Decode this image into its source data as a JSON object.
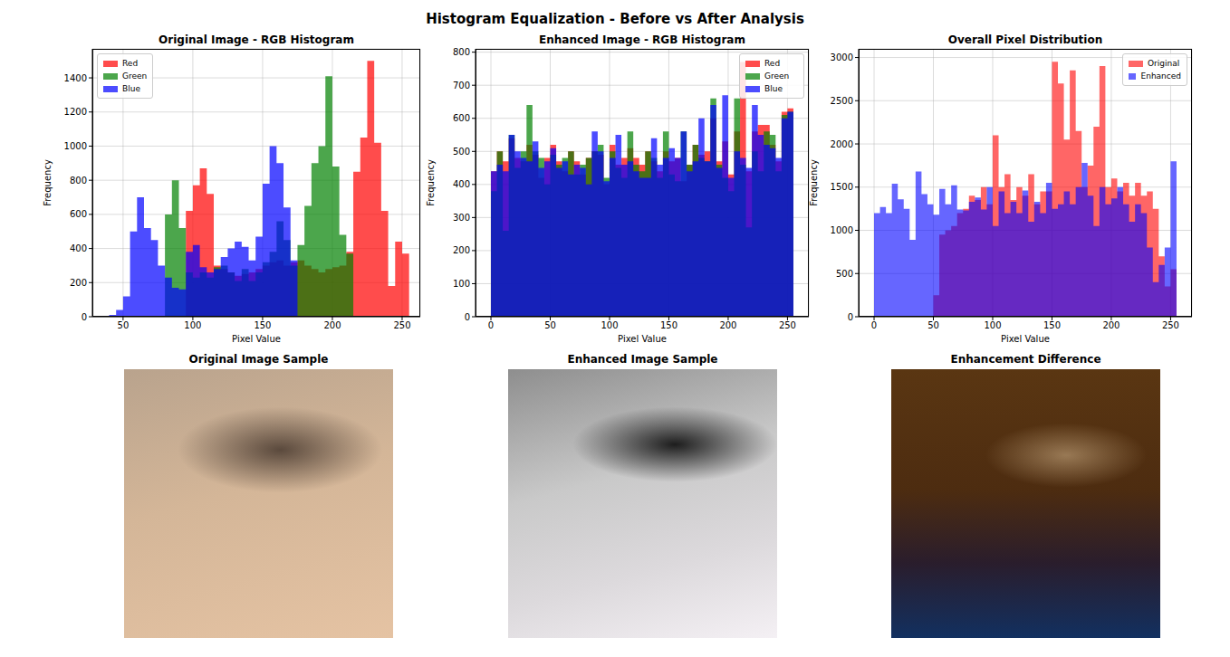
{
  "title": "Histogram Equalization - Before vs After Analysis",
  "chart_data": [
    {
      "type": "histogram",
      "title": "Original Image - RGB Histogram",
      "x_label": "Pixel Value",
      "y_label": "Frequency",
      "bins": [
        35,
        40,
        45,
        50,
        55,
        60,
        65,
        70,
        75,
        80,
        85,
        90,
        95,
        100,
        105,
        110,
        115,
        120,
        125,
        130,
        135,
        140,
        145,
        150,
        155,
        160,
        165,
        170,
        175,
        180,
        185,
        190,
        195,
        200,
        205,
        210,
        215,
        220,
        225,
        230,
        235,
        240,
        245,
        250,
        255
      ],
      "series": [
        {
          "name": "Red",
          "color": "#ff0000",
          "values": [
            0,
            0,
            0,
            0,
            0,
            0,
            0,
            0,
            0,
            0,
            0,
            0,
            620,
            770,
            870,
            720,
            300,
            280,
            260,
            240,
            250,
            260,
            280,
            300,
            320,
            330,
            300,
            320,
            330,
            300,
            280,
            260,
            280,
            290,
            300,
            380,
            850,
            1050,
            1500,
            1020,
            620,
            180,
            440,
            370
          ]
        },
        {
          "name": "Green",
          "color": "#008000",
          "values": [
            0,
            0,
            0,
            0,
            0,
            0,
            0,
            0,
            0,
            600,
            800,
            520,
            260,
            230,
            260,
            230,
            290,
            300,
            260,
            210,
            280,
            210,
            260,
            320,
            380,
            560,
            450,
            300,
            420,
            650,
            900,
            1000,
            1410,
            880,
            480,
            370,
            0,
            0,
            0,
            0,
            0,
            0,
            0,
            0
          ]
        },
        {
          "name": "Blue",
          "color": "#0000ff",
          "values": [
            0,
            10,
            40,
            120,
            500,
            700,
            520,
            450,
            300,
            230,
            170,
            160,
            380,
            420,
            290,
            260,
            280,
            350,
            400,
            440,
            410,
            330,
            470,
            780,
            1000,
            900,
            640,
            330,
            0,
            0,
            0,
            0,
            0,
            0,
            0,
            0,
            0,
            0,
            0,
            0,
            0,
            0,
            0,
            0
          ]
        }
      ],
      "xlim": [
        28,
        263
      ],
      "xticks": [
        50,
        100,
        150,
        200,
        250
      ],
      "ylim": [
        0,
        1570
      ],
      "yticks": [
        0,
        200,
        400,
        600,
        800,
        1000,
        1200,
        1400
      ],
      "grid": true,
      "legend": "upper left"
    },
    {
      "type": "histogram",
      "title": "Enhanced Image - RGB Histogram",
      "x_label": "Pixel Value",
      "y_label": "Frequency",
      "bins": [
        0,
        5,
        10,
        15,
        20,
        25,
        30,
        35,
        40,
        45,
        50,
        55,
        60,
        65,
        70,
        75,
        80,
        85,
        90,
        95,
        100,
        105,
        110,
        115,
        120,
        125,
        130,
        135,
        140,
        145,
        150,
        155,
        160,
        165,
        170,
        175,
        180,
        185,
        190,
        195,
        200,
        205,
        210,
        215,
        220,
        225,
        230,
        235,
        240,
        245,
        250,
        255
      ],
      "series": [
        {
          "name": "Red",
          "color": "#ff0000",
          "values": [
            440,
            500,
            470,
            540,
            480,
            470,
            520,
            490,
            420,
            480,
            520,
            470,
            440,
            500,
            470,
            430,
            480,
            500,
            490,
            400,
            520,
            460,
            480,
            510,
            480,
            460,
            500,
            470,
            440,
            500,
            470,
            480,
            410,
            460,
            520,
            490,
            500,
            600,
            470,
            530,
            430,
            560,
            770,
            440,
            560,
            580,
            580,
            520,
            470,
            620,
            630
          ]
        },
        {
          "name": "Green",
          "color": "#008000",
          "values": [
            380,
            500,
            260,
            550,
            450,
            500,
            640,
            500,
            480,
            400,
            490,
            460,
            480,
            500,
            430,
            460,
            480,
            500,
            520,
            420,
            500,
            450,
            420,
            560,
            460,
            440,
            500,
            480,
            420,
            560,
            430,
            410,
            560,
            460,
            520,
            480,
            470,
            660,
            460,
            420,
            380,
            660,
            460,
            270,
            500,
            440,
            560,
            550,
            440,
            610,
            620
          ]
        },
        {
          "name": "Blue",
          "color": "#0000ff",
          "values": [
            440,
            460,
            440,
            550,
            500,
            480,
            470,
            530,
            450,
            470,
            510,
            450,
            470,
            430,
            460,
            450,
            400,
            560,
            500,
            410,
            480,
            550,
            460,
            470,
            440,
            420,
            420,
            540,
            460,
            480,
            510,
            480,
            560,
            440,
            470,
            600,
            470,
            640,
            450,
            670,
            420,
            500,
            480,
            450,
            640,
            550,
            520,
            510,
            480,
            600,
            620
          ]
        }
      ],
      "xlim": [
        -13,
        268
      ],
      "xticks": [
        0,
        50,
        100,
        150,
        200,
        250
      ],
      "ylim": [
        0,
        810
      ],
      "yticks": [
        0,
        100,
        200,
        300,
        400,
        500,
        600,
        700,
        800
      ],
      "grid": true,
      "legend": "upper right"
    },
    {
      "type": "histogram",
      "title": "Overall Pixel Distribution",
      "x_label": "Pixel Value",
      "y_label": "Frequency",
      "bins": [
        0,
        5,
        10,
        15,
        20,
        25,
        30,
        35,
        40,
        45,
        50,
        55,
        60,
        65,
        70,
        75,
        80,
        85,
        90,
        95,
        100,
        105,
        110,
        115,
        120,
        125,
        130,
        135,
        140,
        145,
        150,
        155,
        160,
        165,
        170,
        175,
        180,
        185,
        190,
        195,
        200,
        205,
        210,
        215,
        220,
        225,
        230,
        235,
        240,
        245,
        250,
        255
      ],
      "series": [
        {
          "name": "Original",
          "color": "#ff0000",
          "values": [
            0,
            0,
            0,
            0,
            0,
            0,
            0,
            0,
            0,
            0,
            250,
            950,
            1000,
            1050,
            1200,
            1250,
            1400,
            1350,
            1500,
            1300,
            2100,
            1500,
            1650,
            1350,
            1500,
            1400,
            1650,
            1300,
            1450,
            1450,
            2950,
            2700,
            2050,
            2850,
            2150,
            1500,
            1750,
            2200,
            2900,
            1500,
            1600,
            1450,
            1550,
            1400,
            1550,
            1400,
            1450,
            1250,
            700,
            350,
            550
          ]
        },
        {
          "name": "Enhanced",
          "color": "#0000ff",
          "values": [
            1200,
            1270,
            1200,
            1540,
            1360,
            1250,
            890,
            1680,
            1420,
            1300,
            1180,
            1480,
            1300,
            1520,
            1240,
            1230,
            1330,
            1380,
            1240,
            1500,
            1050,
            1450,
            1200,
            1330,
            1200,
            1460,
            1100,
            1330,
            1200,
            1550,
            1250,
            1300,
            1450,
            1300,
            1500,
            1780,
            1400,
            1050,
            1500,
            1300,
            1370,
            1500,
            1300,
            1100,
            1300,
            1200,
            800,
            400,
            600,
            800,
            1800
          ]
        }
      ],
      "xlim": [
        -13,
        268
      ],
      "xticks": [
        0,
        50,
        100,
        150,
        200,
        250
      ],
      "ylim": [
        0,
        3100
      ],
      "yticks": [
        0,
        500,
        1000,
        1500,
        2000,
        2500,
        3000
      ],
      "grid": true,
      "legend": "upper right"
    }
  ],
  "images": [
    {
      "title": "Original Image Sample"
    },
    {
      "title": "Enhanced Image Sample"
    },
    {
      "title": "Enhancement Difference"
    }
  ]
}
